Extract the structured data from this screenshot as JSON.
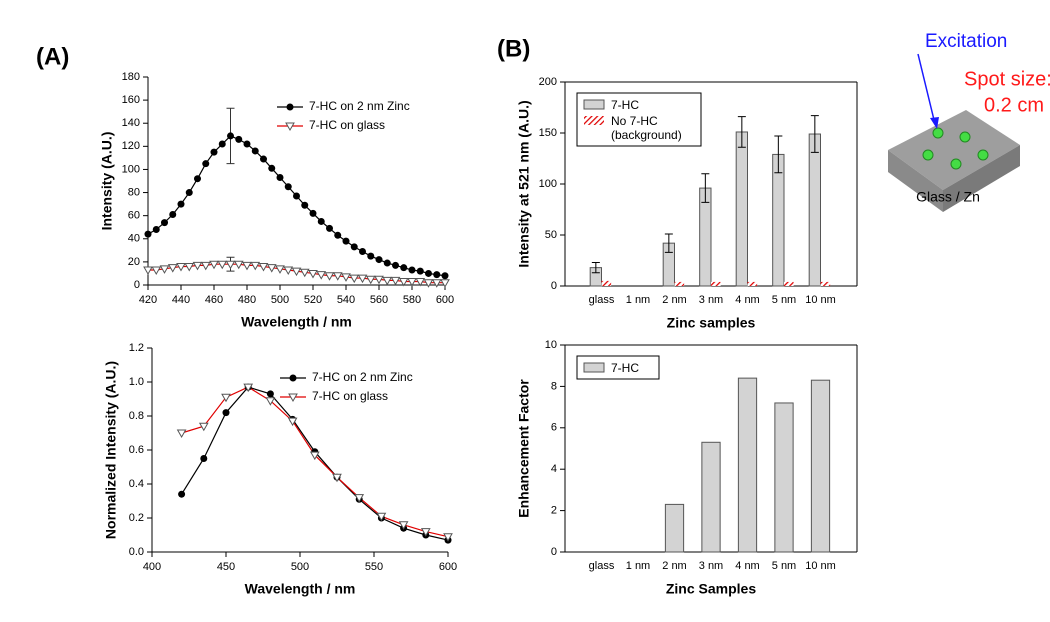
{
  "panels": [
    "(A)",
    "(B)"
  ],
  "diagram": {
    "excitation": "Excitation",
    "spot_size": "Spot size:",
    "spot_value": "0.2 cm",
    "substrate": "Glass / Zn"
  },
  "chart_data": [
    {
      "type": "line",
      "xlabel": "Wavelength / nm",
      "ylabel": "Intensity (A.U.)",
      "x": [
        420,
        425,
        430,
        435,
        440,
        445,
        450,
        455,
        460,
        465,
        470,
        475,
        480,
        485,
        490,
        495,
        500,
        505,
        510,
        515,
        520,
        525,
        530,
        535,
        540,
        545,
        550,
        555,
        560,
        565,
        570,
        575,
        580,
        585,
        590,
        595,
        600
      ],
      "series": [
        {
          "name": "7-HC on 2 nm Zinc",
          "color": "#000000",
          "marker": "circle",
          "values": [
            44,
            48,
            54,
            61,
            70,
            80,
            92,
            105,
            115,
            122,
            129,
            126,
            122,
            116,
            109,
            101,
            93,
            85,
            77,
            69,
            62,
            55,
            49,
            43,
            38,
            33,
            29,
            25,
            22,
            19,
            17,
            15,
            13,
            12,
            10,
            9,
            8
          ],
          "errors": [
            null,
            null,
            null,
            null,
            null,
            null,
            null,
            null,
            null,
            null,
            24,
            null,
            null,
            null,
            null,
            null,
            null,
            null,
            null,
            null,
            null,
            null,
            null,
            null,
            null,
            null,
            null,
            null,
            null,
            null,
            null,
            null,
            null,
            null,
            null,
            null,
            null
          ]
        },
        {
          "name": "7-HC on glass",
          "color": "#e00000",
          "marker": "triangle-down",
          "values": [
            13,
            13,
            14,
            15,
            16,
            16,
            17,
            17,
            18,
            18,
            18,
            18,
            17,
            17,
            16,
            15,
            14,
            13,
            12,
            11,
            10,
            9,
            8,
            8,
            7,
            6,
            6,
            5,
            5,
            4,
            4,
            3,
            3,
            3,
            2,
            2,
            2
          ],
          "errors": [
            null,
            null,
            null,
            null,
            null,
            null,
            null,
            null,
            null,
            null,
            6,
            null,
            null,
            null,
            null,
            null,
            null,
            null,
            null,
            null,
            null,
            null,
            null,
            null,
            null,
            null,
            null,
            null,
            null,
            null,
            null,
            null,
            null,
            null,
            null,
            null,
            null
          ]
        }
      ],
      "xlim": [
        420,
        600
      ],
      "xticks": [
        420,
        440,
        460,
        480,
        500,
        520,
        540,
        560,
        580,
        600
      ],
      "ylim": [
        0,
        180
      ],
      "yticks": [
        0,
        20,
        40,
        60,
        80,
        100,
        120,
        140,
        160,
        180
      ],
      "legend": "upper right",
      "frame": false
    },
    {
      "type": "line",
      "xlabel": "Wavelength / nm",
      "ylabel": "Normalized Intensity (A.U.)",
      "x": [
        420,
        435,
        450,
        465,
        480,
        495,
        510,
        525,
        540,
        555,
        570,
        585,
        600
      ],
      "series": [
        {
          "name": "7-HC on 2 nm Zinc",
          "color": "#000000",
          "marker": "circle",
          "values": [
            0.34,
            0.55,
            0.82,
            0.97,
            0.93,
            0.78,
            0.59,
            0.44,
            0.31,
            0.2,
            0.14,
            0.1,
            0.07
          ]
        },
        {
          "name": "7-HC on glass",
          "color": "#e00000",
          "marker": "triangle-down",
          "values": [
            0.7,
            0.74,
            0.91,
            0.97,
            0.89,
            0.77,
            0.57,
            0.44,
            0.32,
            0.21,
            0.16,
            0.12,
            0.09
          ]
        }
      ],
      "xlim": [
        400,
        600
      ],
      "xticks": [
        400,
        450,
        500,
        550,
        600
      ],
      "ylim": [
        0,
        1.2
      ],
      "yticks": [
        {
          "value": 0,
          "label": "0.0"
        },
        0.2,
        0.4,
        0.6,
        0.8,
        {
          "value": 1,
          "label": "1.0"
        },
        1.2
      ],
      "legend": "upper right",
      "frame": false
    },
    {
      "type": "bar",
      "xlabel": "Zinc samples",
      "ylabel": "Intensity at 521 nm (A.U.)",
      "categories": [
        "glass",
        "1 nm",
        "2 nm",
        "3 nm",
        "4 nm",
        "5 nm",
        "10 nm"
      ],
      "series": [
        {
          "name": "7-HC",
          "color": "#d3d3d3",
          "values": [
            18,
            null,
            42,
            96,
            151,
            129,
            149
          ],
          "errors": [
            5,
            null,
            9,
            14,
            15,
            18,
            18
          ]
        },
        {
          "name": "No 7-HC (background)",
          "color": "#e00000",
          "hatch": true,
          "values": [
            5,
            null,
            4,
            4,
            4,
            4,
            4
          ]
        }
      ],
      "ylim": [
        0,
        200
      ],
      "yticks": [
        0,
        50,
        100,
        150,
        200
      ],
      "legend": "upper left",
      "frame": true
    },
    {
      "type": "bar",
      "xlabel": "Zinc Samples",
      "ylabel": "Enhancement Factor",
      "categories": [
        "glass",
        "1 nm",
        "2 nm",
        "3 nm",
        "4 nm",
        "5 nm",
        "10 nm"
      ],
      "series": [
        {
          "name": "7-HC",
          "color": "#d3d3d3",
          "values": [
            null,
            null,
            2.3,
            5.3,
            8.4,
            7.2,
            8.3
          ]
        }
      ],
      "ylim": [
        0,
        10
      ],
      "yticks": [
        0,
        2,
        4,
        6,
        8,
        10
      ],
      "legend": "upper left",
      "frame": true
    }
  ]
}
